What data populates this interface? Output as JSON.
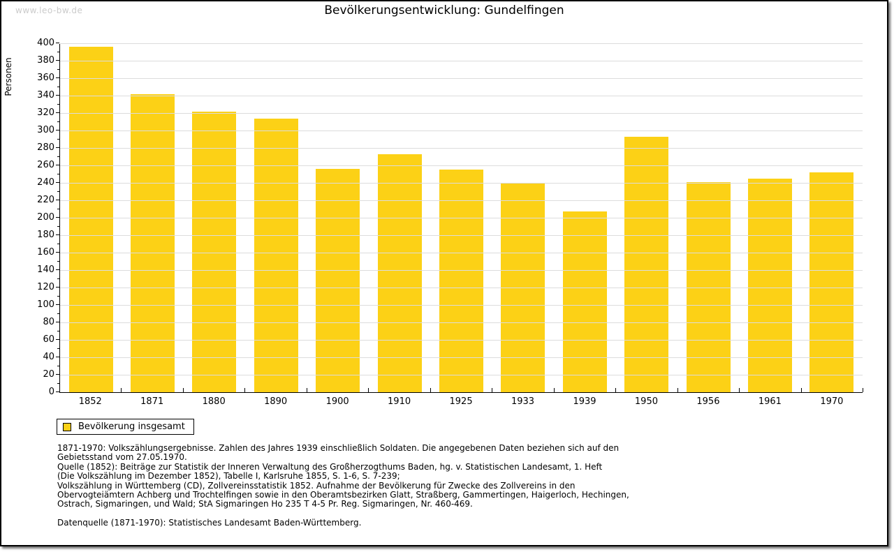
{
  "watermark": "www.leo-bw.de",
  "header": {
    "title": "Bevölkerungsentwicklung: Gundelfingen"
  },
  "colors": {
    "bar": "#FCD116",
    "grid": "#DCDCDC",
    "axis": "#000000",
    "watermark": "#CBCBCB"
  },
  "chart_data": {
    "type": "bar",
    "title": "Bevölkerungsentwicklung: Gundelfingen",
    "xlabel": "",
    "ylabel": "Personen",
    "categories": [
      "1852",
      "1871",
      "1880",
      "1890",
      "1900",
      "1910",
      "1925",
      "1933",
      "1939",
      "1950",
      "1956",
      "1961",
      "1970"
    ],
    "values": [
      396,
      342,
      322,
      314,
      256,
      273,
      255,
      239,
      207,
      293,
      241,
      245,
      252
    ],
    "ylim": [
      0,
      400
    ],
    "ytick_step": 20,
    "ytick_minor_step": 10,
    "grid": true,
    "legend_entries": [
      "Bevölkerung insgesamt"
    ],
    "legend_position": "bottom-left"
  },
  "legend": {
    "label": "Bevölkerung insgesamt"
  },
  "notes": {
    "lines": [
      "1871-1970: Volkszählungsergebnisse. Zahlen des Jahres 1939 einschließlich Soldaten. Die angegebenen Daten beziehen sich auf den",
      "Gebietsstand vom 27.05.1970.",
      "Quelle (1852): Beiträge zur Statistik der Inneren Verwaltung des Großherzogthums Baden, hg. v. Statistischen Landesamt, 1. Heft",
      "(Die Volkszählung im Dezember 1852), Tabelle I, Karlsruhe 1855, S. 1-6, S. 7-239;",
      "Volkszählung in Württemberg (CD), Zollvereinsstatistik 1852. Aufnahme der Bevölkerung für Zwecke des Zollvereins in den",
      "Obervogteiämtern Achberg und Trochtelfingen sowie in den Oberamtsbezirken Glatt, Straßberg, Gammertingen, Haigerloch, Hechingen,",
      "Ostrach, Sigmaringen, und Wald; StA Sigmaringen Ho 235 T 4-5 Pr. Reg. Sigmaringen, Nr. 460-469."
    ],
    "datasource": "Datenquelle (1871-1970): Statistisches Landesamt Baden-Württemberg."
  }
}
